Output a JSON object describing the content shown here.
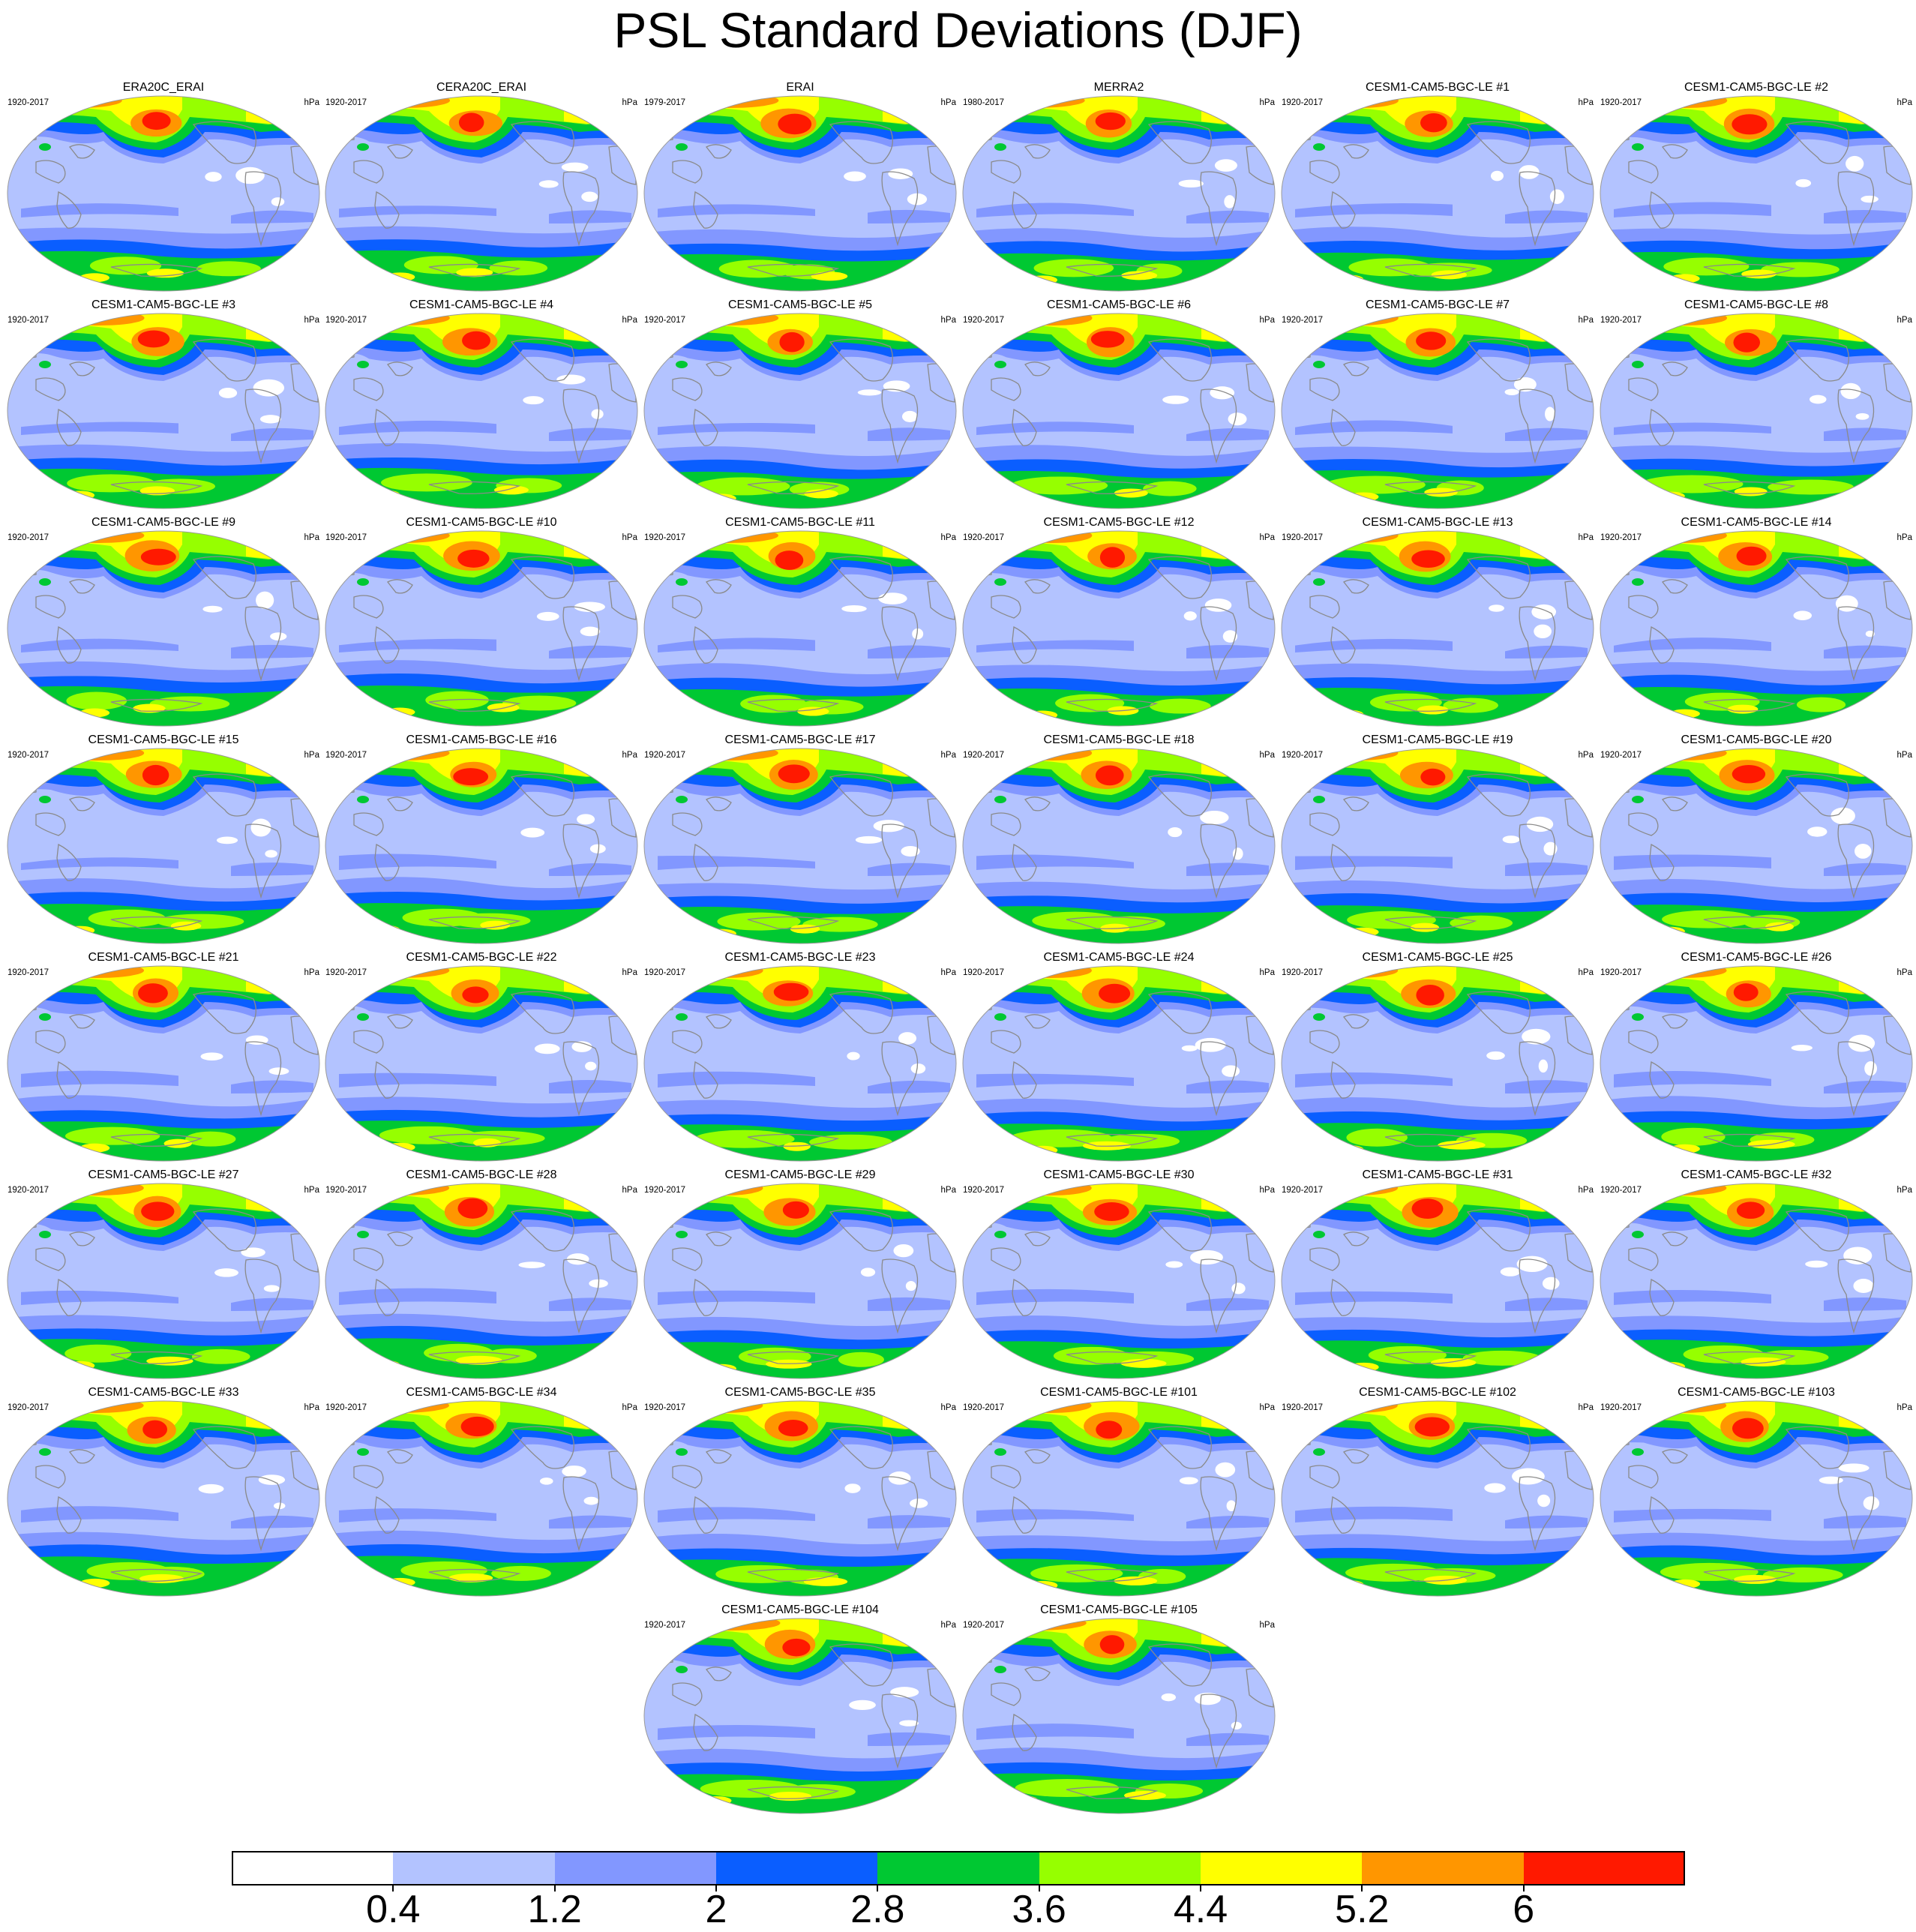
{
  "chart_data": {
    "type": "heatmap",
    "title": "PSL Standard Deviations (DJF)",
    "variable": "PSL",
    "season": "DJF",
    "units": "hPa",
    "projection": "robinson",
    "contour_levels": [
      0.4,
      1.2,
      2,
      2.8,
      3.6,
      4.4,
      5.2,
      6
    ],
    "colorbar_labels": [
      "0.4",
      "1.2",
      "2",
      "2.8",
      "3.6",
      "4.4",
      "5.2",
      "6"
    ],
    "colors": [
      "#ffffff",
      "#b3c3ff",
      "#8297ff",
      "#0a5eff",
      "#00c832",
      "#96ff00",
      "#ffff00",
      "#ff9600",
      "#ff1900"
    ],
    "panels": [
      {
        "title": "ERA20C_ERAI",
        "years": "1920-2017",
        "units": "hPa"
      },
      {
        "title": "CERA20C_ERAI",
        "years": "1920-2017",
        "units": "hPa"
      },
      {
        "title": "ERAI",
        "years": "1979-2017",
        "units": "hPa"
      },
      {
        "title": "MERRA2",
        "years": "1980-2017",
        "units": "hPa"
      },
      {
        "title": "CESM1-CAM5-BGC-LE #1",
        "years": "1920-2017",
        "units": "hPa"
      },
      {
        "title": "CESM1-CAM5-BGC-LE #2",
        "years": "1920-2017",
        "units": "hPa"
      },
      {
        "title": "CESM1-CAM5-BGC-LE #3",
        "years": "1920-2017",
        "units": "hPa"
      },
      {
        "title": "CESM1-CAM5-BGC-LE #4",
        "years": "1920-2017",
        "units": "hPa"
      },
      {
        "title": "CESM1-CAM5-BGC-LE #5",
        "years": "1920-2017",
        "units": "hPa"
      },
      {
        "title": "CESM1-CAM5-BGC-LE #6",
        "years": "1920-2017",
        "units": "hPa"
      },
      {
        "title": "CESM1-CAM5-BGC-LE #7",
        "years": "1920-2017",
        "units": "hPa"
      },
      {
        "title": "CESM1-CAM5-BGC-LE #8",
        "years": "1920-2017",
        "units": "hPa"
      },
      {
        "title": "CESM1-CAM5-BGC-LE #9",
        "years": "1920-2017",
        "units": "hPa"
      },
      {
        "title": "CESM1-CAM5-BGC-LE #10",
        "years": "1920-2017",
        "units": "hPa"
      },
      {
        "title": "CESM1-CAM5-BGC-LE #11",
        "years": "1920-2017",
        "units": "hPa"
      },
      {
        "title": "CESM1-CAM5-BGC-LE #12",
        "years": "1920-2017",
        "units": "hPa"
      },
      {
        "title": "CESM1-CAM5-BGC-LE #13",
        "years": "1920-2017",
        "units": "hPa"
      },
      {
        "title": "CESM1-CAM5-BGC-LE #14",
        "years": "1920-2017",
        "units": "hPa"
      },
      {
        "title": "CESM1-CAM5-BGC-LE #15",
        "years": "1920-2017",
        "units": "hPa"
      },
      {
        "title": "CESM1-CAM5-BGC-LE #16",
        "years": "1920-2017",
        "units": "hPa"
      },
      {
        "title": "CESM1-CAM5-BGC-LE #17",
        "years": "1920-2017",
        "units": "hPa"
      },
      {
        "title": "CESM1-CAM5-BGC-LE #18",
        "years": "1920-2017",
        "units": "hPa"
      },
      {
        "title": "CESM1-CAM5-BGC-LE #19",
        "years": "1920-2017",
        "units": "hPa"
      },
      {
        "title": "CESM1-CAM5-BGC-LE #20",
        "years": "1920-2017",
        "units": "hPa"
      },
      {
        "title": "CESM1-CAM5-BGC-LE #21",
        "years": "1920-2017",
        "units": "hPa"
      },
      {
        "title": "CESM1-CAM5-BGC-LE #22",
        "years": "1920-2017",
        "units": "hPa"
      },
      {
        "title": "CESM1-CAM5-BGC-LE #23",
        "years": "1920-2017",
        "units": "hPa"
      },
      {
        "title": "CESM1-CAM5-BGC-LE #24",
        "years": "1920-2017",
        "units": "hPa"
      },
      {
        "title": "CESM1-CAM5-BGC-LE #25",
        "years": "1920-2017",
        "units": "hPa"
      },
      {
        "title": "CESM1-CAM5-BGC-LE #26",
        "years": "1920-2017",
        "units": "hPa"
      },
      {
        "title": "CESM1-CAM5-BGC-LE #27",
        "years": "1920-2017",
        "units": "hPa"
      },
      {
        "title": "CESM1-CAM5-BGC-LE #28",
        "years": "1920-2017",
        "units": "hPa"
      },
      {
        "title": "CESM1-CAM5-BGC-LE #29",
        "years": "1920-2017",
        "units": "hPa"
      },
      {
        "title": "CESM1-CAM5-BGC-LE #30",
        "years": "1920-2017",
        "units": "hPa"
      },
      {
        "title": "CESM1-CAM5-BGC-LE #31",
        "years": "1920-2017",
        "units": "hPa"
      },
      {
        "title": "CESM1-CAM5-BGC-LE #32",
        "years": "1920-2017",
        "units": "hPa"
      },
      {
        "title": "CESM1-CAM5-BGC-LE #33",
        "years": "1920-2017",
        "units": "hPa"
      },
      {
        "title": "CESM1-CAM5-BGC-LE #34",
        "years": "1920-2017",
        "units": "hPa"
      },
      {
        "title": "CESM1-CAM5-BGC-LE #35",
        "years": "1920-2017",
        "units": "hPa"
      },
      {
        "title": "CESM1-CAM5-BGC-LE #101",
        "years": "1920-2017",
        "units": "hPa"
      },
      {
        "title": "CESM1-CAM5-BGC-LE #102",
        "years": "1920-2017",
        "units": "hPa"
      },
      {
        "title": "CESM1-CAM5-BGC-LE #103",
        "years": "1920-2017",
        "units": "hPa"
      },
      {
        "title": "CESM1-CAM5-BGC-LE #104",
        "years": "1920-2017",
        "units": "hPa"
      },
      {
        "title": "CESM1-CAM5-BGC-LE #105",
        "years": "1920-2017",
        "units": "hPa"
      }
    ]
  }
}
